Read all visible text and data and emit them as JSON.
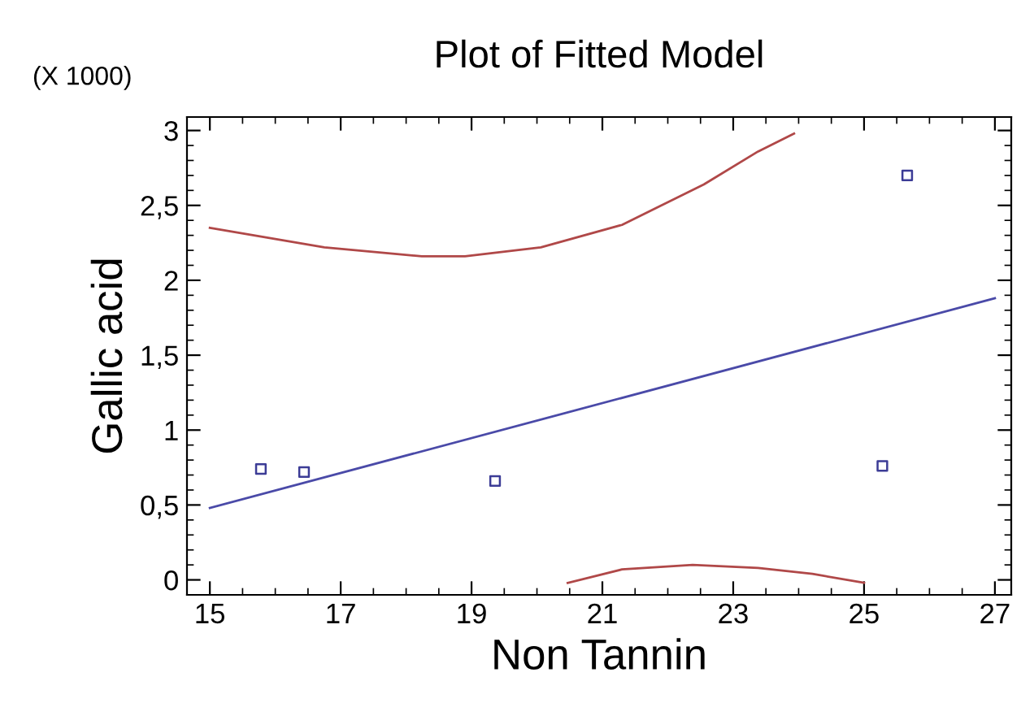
{
  "chart_data": {
    "type": "scatter",
    "title": "Plot of Fitted Model",
    "xlabel": "Non Tannin",
    "ylabel": "Gallic acid",
    "annotations": [
      "(X 1000)"
    ],
    "series": [
      {
        "color": "#3c3c96",
        "marker": "square",
        "x": [
          15.78,
          16.44,
          19.36,
          25.28,
          25.66
        ],
        "values": [
          0.74,
          0.72,
          0.66,
          0.76,
          2.7
        ]
      },
      {
        "type": "line",
        "color": "#4a4aa8",
        "marker": "none",
        "x": [
          15,
          27
        ],
        "values": [
          0.48,
          1.88
        ]
      },
      {
        "type": "line",
        "color": "#b04848",
        "marker": "none",
        "x": [
          15.0,
          16.75,
          18.24,
          18.9,
          20.06,
          21.3,
          22.55,
          23.38,
          23.93
        ],
        "values": [
          2.35,
          2.22,
          2.16,
          2.16,
          2.22,
          2.37,
          2.64,
          2.86,
          2.98
        ]
      },
      {
        "type": "line",
        "color": "#b04848",
        "marker": "none",
        "x": [
          20.47,
          21.3,
          22.38,
          23.38,
          24.21,
          25.0
        ],
        "values": [
          -0.02,
          0.07,
          0.1,
          0.08,
          0.04,
          -0.02
        ]
      }
    ],
    "xlim": [
      14.65,
      27.25
    ],
    "ylim": [
      -0.1,
      3.09
    ],
    "xticks": [
      15,
      17,
      19,
      21,
      23,
      25,
      27
    ],
    "yticks": [
      0,
      {
        "value": 0.5,
        "label": "0,5"
      },
      1,
      {
        "value": 1.5,
        "label": "1,5"
      },
      2,
      {
        "value": 2.5,
        "label": "2,5"
      },
      3
    ],
    "grid": false,
    "legend": false
  }
}
